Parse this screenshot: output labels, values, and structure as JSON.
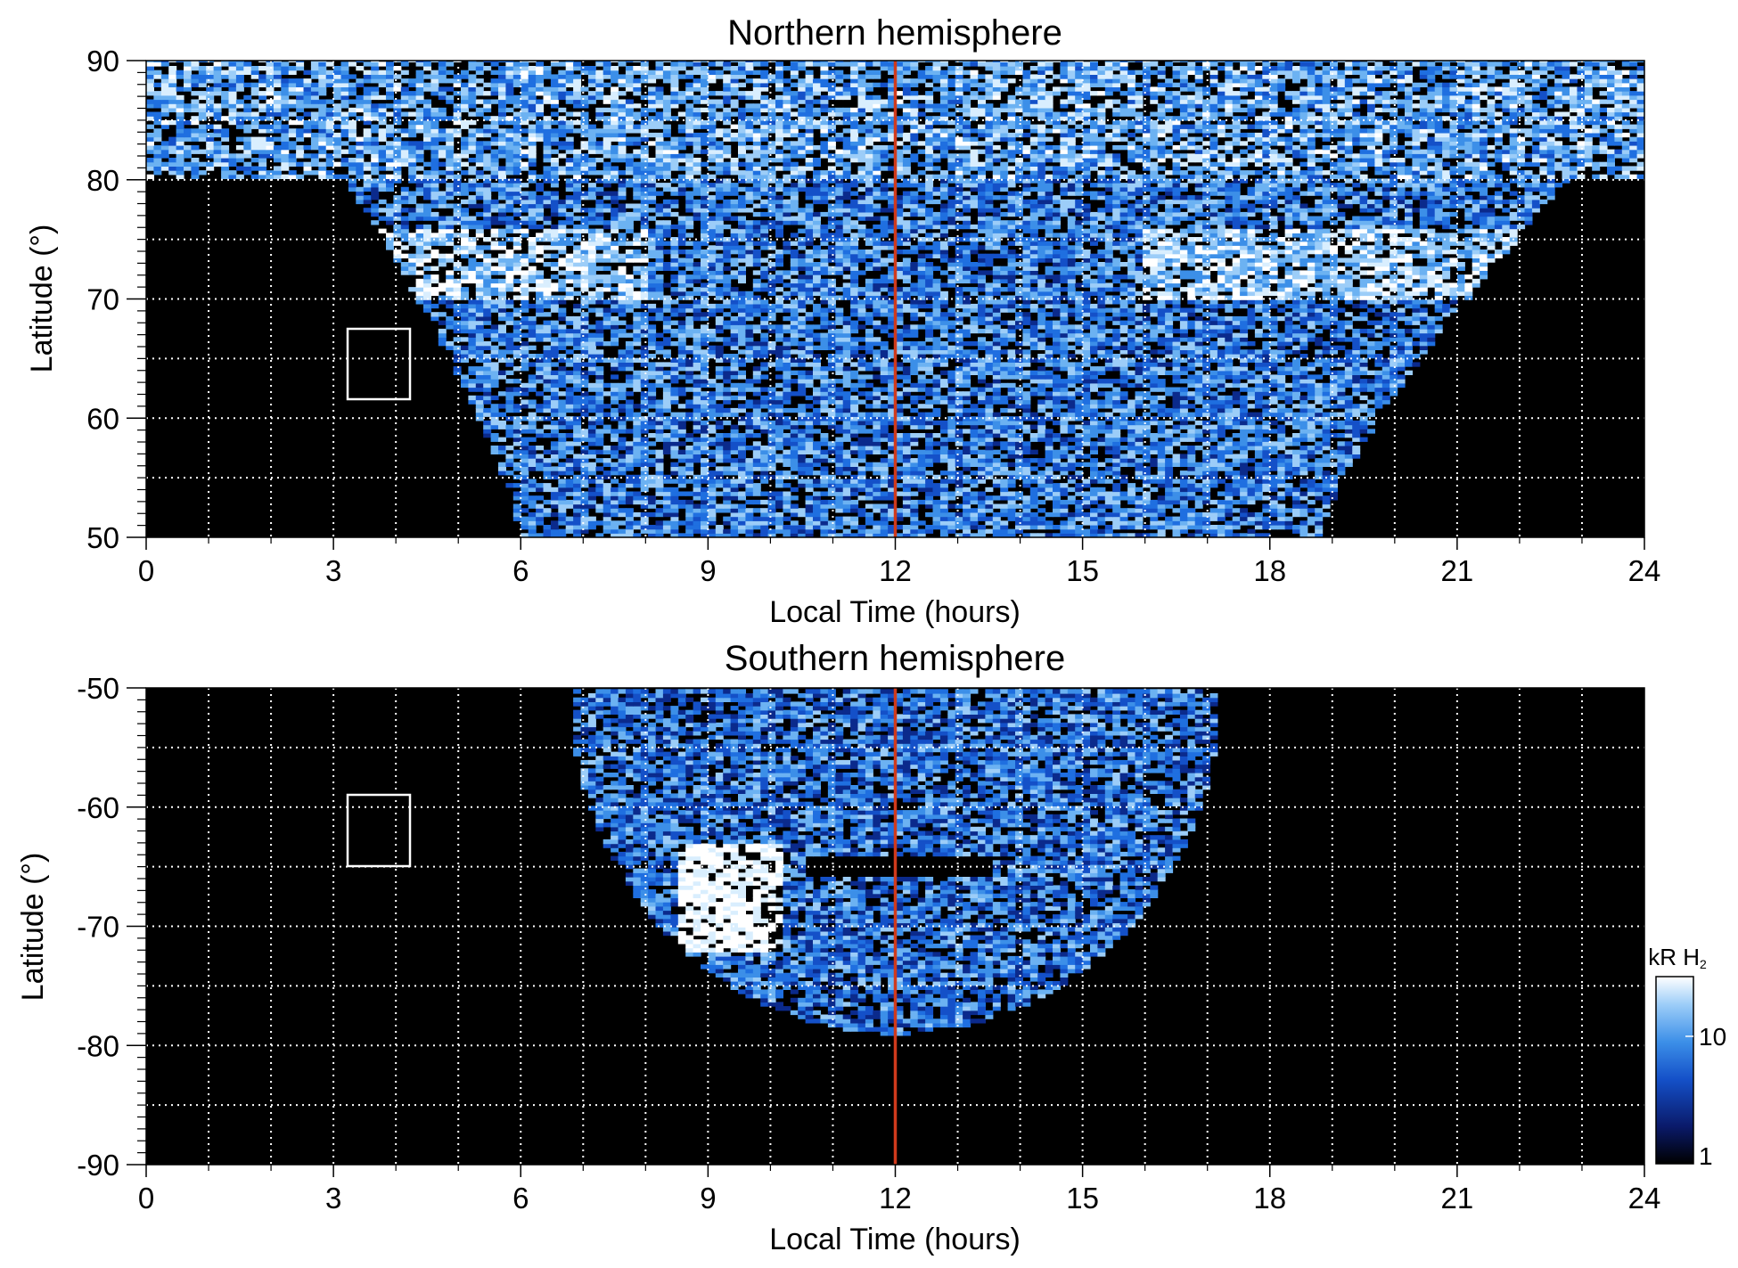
{
  "chart_data": [
    {
      "type": "heatmap",
      "title": "Northern hemisphere",
      "xlabel": "Local Time (hours)",
      "ylabel": "Latitude (°)",
      "xlim": [
        0,
        24
      ],
      "ylim": [
        50,
        90
      ],
      "xticks": [
        "0",
        "3",
        "6",
        "9",
        "12",
        "15",
        "18",
        "21",
        "24"
      ],
      "yticks": [
        "50",
        "60",
        "70",
        "80",
        "90"
      ],
      "grid": true,
      "reference_line": {
        "x": 12,
        "color": "#d03a1c"
      },
      "box": {
        "x": [
          3.2,
          4.2
        ],
        "y": [
          61.5,
          67.5
        ]
      },
      "coverage_region": "upper funnel: full local-time band above ~80°, narrowing toward 6–19 h at 50°"
    },
    {
      "type": "heatmap",
      "title": "Southern hemisphere",
      "xlabel": "Local Time (hours)",
      "ylabel": "Latitude (°)",
      "xlim": [
        0,
        24
      ],
      "ylim": [
        -90,
        -50
      ],
      "xticks": [
        "0",
        "3",
        "6",
        "9",
        "12",
        "15",
        "18",
        "21",
        "24"
      ],
      "yticks": [
        "-90",
        "-80",
        "-70",
        "-60",
        "-50"
      ],
      "grid": true,
      "reference_line": {
        "x": 12,
        "color": "#d03a1c"
      },
      "box": {
        "x": [
          3.2,
          4.2
        ],
        "y": [
          -65,
          -59
        ]
      },
      "coverage_region": "bowl from ~7–17 h at -50° down to ~-79° near noon"
    }
  ],
  "colorbar": {
    "label_main": "kR H",
    "label_sub": "2",
    "scale": "log",
    "range": [
      1,
      20
    ],
    "ticks": [
      "10",
      "1"
    ],
    "colors": [
      "#000000",
      "#0a1a6a",
      "#1450c8",
      "#3c8fe8",
      "#9ccdf8",
      "#ffffff"
    ]
  }
}
